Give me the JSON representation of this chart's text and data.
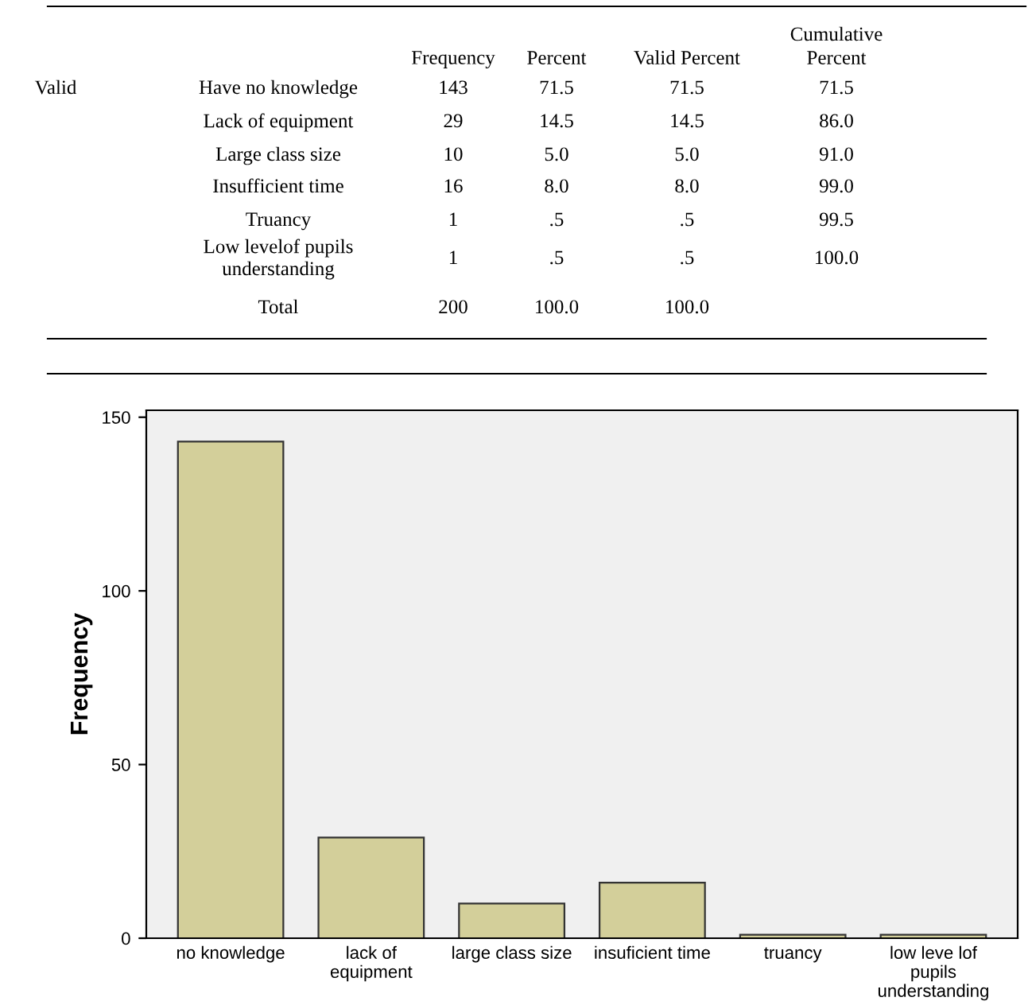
{
  "chart_data": [
    {
      "type": "other",
      "annotations": [
        "Valid"
      ],
      "categories": [
        "Frequency",
        "Percent",
        "Valid Percent",
        "Cumulative\nPercent"
      ],
      "y_categories": [
        "Have no knowledge",
        "Lack of equipment",
        "Large class size",
        "Insufficient time",
        "Truancy",
        "Low levelof pupils\nunderstanding",
        "Total"
      ],
      "cell_labels": [
        [
          "143",
          "71.5",
          "71.5",
          "71.5"
        ],
        [
          "29",
          "14.5",
          "14.5",
          "86.0"
        ],
        [
          "10",
          "5.0",
          "5.0",
          "91.0"
        ],
        [
          "16",
          "8.0",
          "8.0",
          "99.0"
        ],
        [
          "1",
          ".5",
          ".5",
          "99.5"
        ],
        [
          "1",
          ".5",
          ".5",
          "100.0"
        ],
        [
          "200",
          "100.0",
          "100.0",
          null
        ]
      ]
    },
    {
      "type": "bar",
      "ylabel": "Frequency",
      "categories": [
        "no knowledge",
        "lack of\nequipment",
        "large class size",
        "insuficient time",
        "truancy",
        "low leve lof\npupils\nunderstanding"
      ],
      "values": [
        143,
        29,
        10,
        16,
        1,
        1
      ],
      "color": "#d3cf9a",
      "ylim": [
        0,
        152
      ],
      "yticks": [
        0,
        50,
        100,
        150
      ],
      "grid": false,
      "legend": false
    }
  ]
}
